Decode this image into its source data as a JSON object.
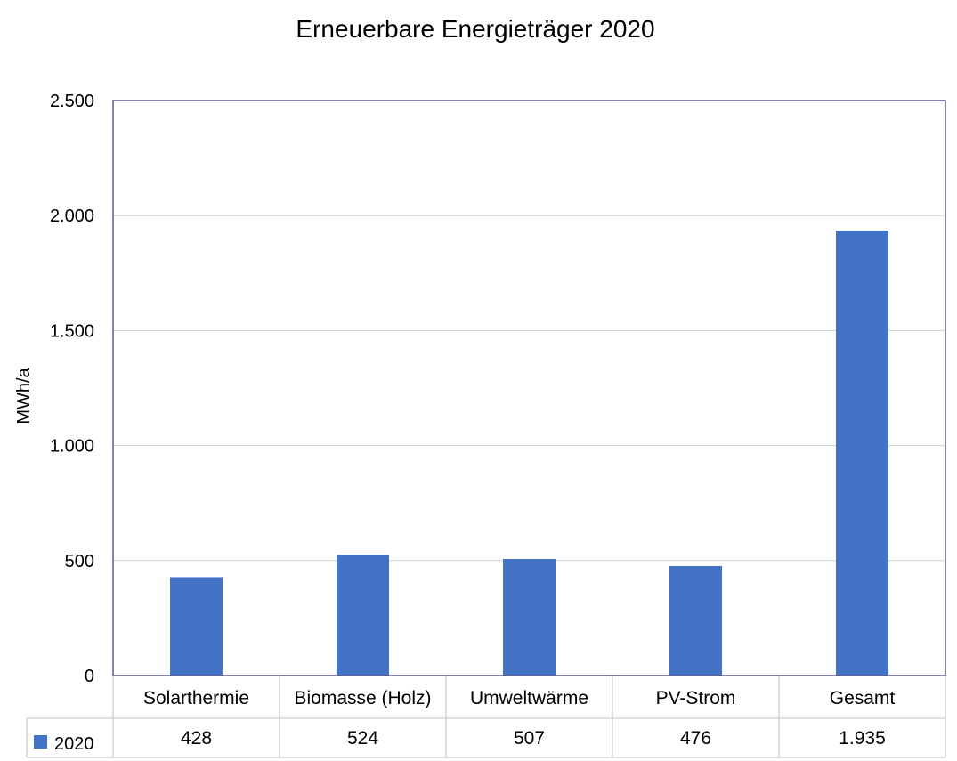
{
  "chart_data": {
    "type": "bar",
    "title": "Erneuerbare Energieträger 2020",
    "ylabel": "MWh/a",
    "xlabel": "",
    "categories": [
      "Solarthermie",
      "Biomasse (Holz)",
      "Umweltwärme",
      "PV-Strom",
      "Gesamt"
    ],
    "series": [
      {
        "name": "2020",
        "values": [
          428,
          524,
          507,
          476,
          1935
        ],
        "color": "#4472c4"
      }
    ],
    "ylim": [
      0,
      2500
    ],
    "yticks": [
      0,
      500,
      1000,
      1500,
      2000,
      2500
    ],
    "ytick_labels": [
      "0",
      "500",
      "1.000",
      "1.500",
      "2.000",
      "2.500"
    ],
    "data_table": true,
    "table_values": [
      "428",
      "524",
      "507",
      "476",
      "1.935"
    ],
    "grid": true,
    "colors": {
      "bar": "#4472c4",
      "plot_border": "#5b5b8f",
      "grid": "#d0d0d0",
      "table_border": "#bfbfbf"
    }
  }
}
